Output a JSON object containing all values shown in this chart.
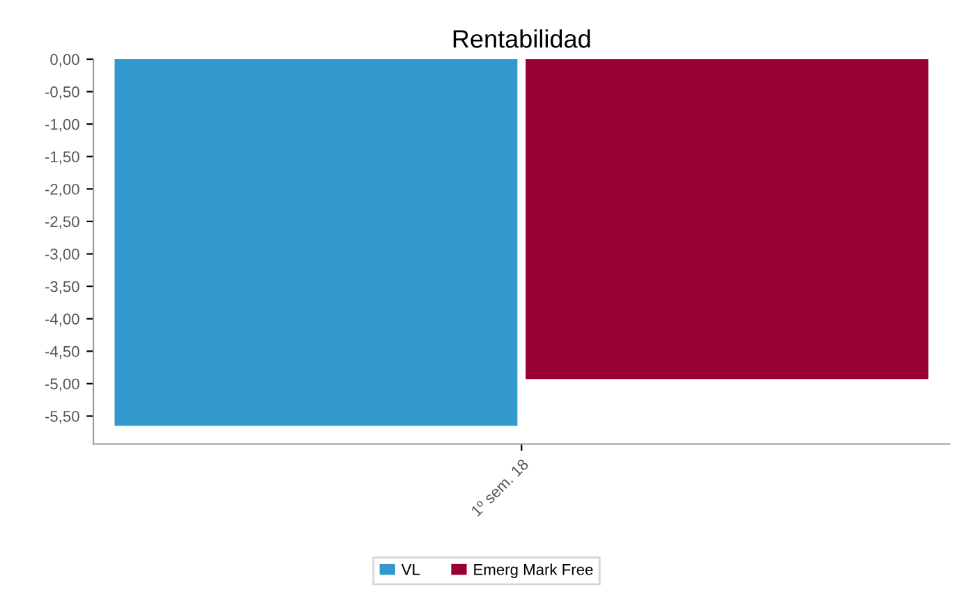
{
  "chart_data": {
    "type": "bar",
    "title": "Rentabilidad",
    "categories": [
      "1º sem. 18"
    ],
    "series": [
      {
        "name": "VL",
        "color": "#3399cc",
        "values": [
          -5.65
        ]
      },
      {
        "name": "Emerg Mark Free",
        "color": "#990033",
        "values": [
          -4.93
        ]
      }
    ],
    "ylim": [
      -5.93,
      0
    ],
    "yticks": [
      {
        "value": 0,
        "label": "0,00"
      },
      {
        "value": -0.5,
        "label": "-0,50"
      },
      {
        "value": -1,
        "label": "-1,00"
      },
      {
        "value": -1.5,
        "label": "-1,50"
      },
      {
        "value": -2,
        "label": "-2,00"
      },
      {
        "value": -2.5,
        "label": "-2,50"
      },
      {
        "value": -3,
        "label": "-3,00"
      },
      {
        "value": -3.5,
        "label": "-3,50"
      },
      {
        "value": -4,
        "label": "-4,00"
      },
      {
        "value": -4.5,
        "label": "-4,50"
      },
      {
        "value": -5,
        "label": "-5,00"
      },
      {
        "value": -5.5,
        "label": "-5,50"
      }
    ],
    "grid": false,
    "legend": "bottom"
  }
}
